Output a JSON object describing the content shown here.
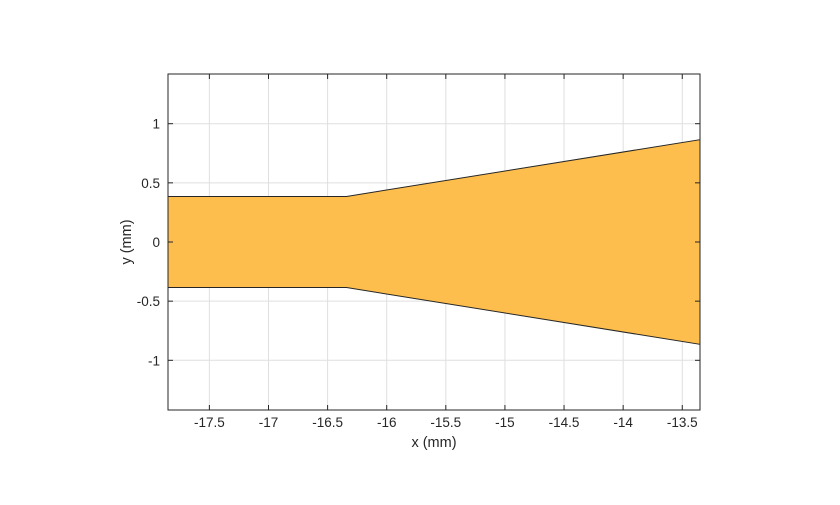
{
  "chart_data": {
    "type": "area",
    "title": "",
    "xlabel": "x (mm)",
    "ylabel": "y (mm)",
    "xlim": [
      -17.85,
      -13.35
    ],
    "ylim": [
      -1.42,
      1.42
    ],
    "xticks": [
      -17.5,
      -17,
      -16.5,
      -16,
      -15.5,
      -15,
      -14.5,
      -14,
      -13.5
    ],
    "xtick_labels": [
      "-17.5",
      "-17",
      "-16.5",
      "-16",
      "-15.5",
      "-15",
      "-14.5",
      "-14",
      "-13.5"
    ],
    "yticks": [
      -1,
      -0.5,
      0,
      0.5,
      1
    ],
    "ytick_labels": [
      "-1",
      "-0.5",
      "0",
      "0.5",
      "1"
    ],
    "grid": true,
    "series": [
      {
        "fill_color": "#FDBE4D",
        "edge_color": "#262626",
        "polygon": [
          {
            "x": -17.85,
            "y": 0.385
          },
          {
            "x": -16.34,
            "y": 0.385
          },
          {
            "x": -13.35,
            "y": 0.865
          },
          {
            "x": -13.35,
            "y": -0.865
          },
          {
            "x": -16.34,
            "y": -0.385
          },
          {
            "x": -17.85,
            "y": -0.385
          }
        ]
      }
    ]
  }
}
